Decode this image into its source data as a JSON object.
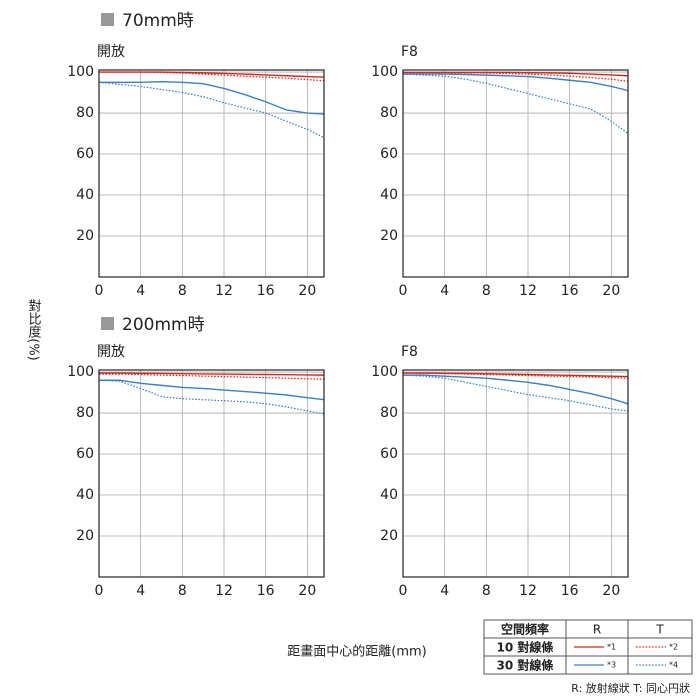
{
  "sections": [
    "70mm時",
    "200mm時"
  ],
  "y_label": "對比度(%)",
  "x_label": "距畫面中心的距離(mm)",
  "legend": {
    "header": [
      "空間頻率",
      "R",
      "T"
    ],
    "rows": [
      [
        "10 對線條",
        "*1",
        "*2"
      ],
      [
        "30 對線條",
        "*3",
        "*4"
      ]
    ],
    "note": "R: 放射線狀  T: 同心円狀"
  },
  "chart_data": [
    {
      "type": "line",
      "subtitle": "開放",
      "x": [
        0,
        2,
        4,
        6,
        8,
        10,
        12,
        14,
        16,
        18,
        20,
        21.6
      ],
      "xlim": [
        0,
        21.6
      ],
      "xticks": [
        0,
        4,
        8,
        12,
        16,
        20
      ],
      "ylim": [
        0,
        101
      ],
      "yticks": [
        20,
        40,
        60,
        80,
        100
      ],
      "grid": true,
      "series": [
        {
          "color": "#d7261e",
          "dash": "solid",
          "values": [
            100,
            100,
            100,
            100,
            99.8,
            99.6,
            99.3,
            99,
            98.6,
            98.2,
            97.8,
            97.5
          ]
        },
        {
          "color": "#d7261e",
          "dash": "dotted",
          "values": [
            100,
            100,
            100,
            99.8,
            99.5,
            99,
            98.5,
            98,
            97.5,
            97,
            96.3,
            95.8
          ]
        },
        {
          "color": "#3d7fc4",
          "dash": "solid",
          "values": [
            95,
            95,
            95,
            95.3,
            95,
            94.3,
            92,
            89,
            85.5,
            81.5,
            80,
            79.5
          ]
        },
        {
          "color": "#3d7fc4",
          "dash": "dotted",
          "values": [
            95,
            94,
            93,
            91.5,
            90,
            88,
            85,
            82.5,
            80,
            76,
            72,
            68
          ]
        }
      ]
    },
    {
      "type": "line",
      "subtitle": "F8",
      "x": [
        0,
        2,
        4,
        6,
        8,
        10,
        12,
        14,
        16,
        18,
        20,
        21.6
      ],
      "xlim": [
        0,
        21.6
      ],
      "xticks": [
        0,
        4,
        8,
        12,
        16,
        20
      ],
      "ylim": [
        0,
        101
      ],
      "yticks": [
        20,
        40,
        60,
        80,
        100
      ],
      "grid": true,
      "series": [
        {
          "color": "#d7261e",
          "dash": "solid",
          "values": [
            99.8,
            99.8,
            99.8,
            99.8,
            99.8,
            99.8,
            99.7,
            99.6,
            99.4,
            99,
            98.6,
            98.2
          ]
        },
        {
          "color": "#d7261e",
          "dash": "dotted",
          "values": [
            99.5,
            99.5,
            99.5,
            99.5,
            99.5,
            99.3,
            99,
            98.6,
            98,
            97.3,
            96.5,
            95.5
          ]
        },
        {
          "color": "#3d7fc4",
          "dash": "solid",
          "values": [
            99,
            99,
            99,
            98.8,
            98.5,
            98.2,
            97.8,
            97,
            96,
            95,
            93,
            91
          ]
        },
        {
          "color": "#3d7fc4",
          "dash": "dotted",
          "values": [
            99,
            98.5,
            98,
            96.5,
            94.5,
            92,
            89.5,
            87,
            84.5,
            82,
            76,
            70
          ]
        }
      ]
    },
    {
      "type": "line",
      "subtitle": "開放",
      "x": [
        0,
        2,
        4,
        6,
        8,
        10,
        12,
        14,
        16,
        18,
        20,
        21.6
      ],
      "xlim": [
        0,
        21.6
      ],
      "xticks": [
        0,
        4,
        8,
        12,
        16,
        20
      ],
      "ylim": [
        0,
        101
      ],
      "yticks": [
        20,
        40,
        60,
        80,
        100
      ],
      "grid": true,
      "series": [
        {
          "color": "#d7261e",
          "dash": "solid",
          "values": [
            99.5,
            99.5,
            99.4,
            99.3,
            99.2,
            99.1,
            99,
            98.9,
            98.8,
            98.7,
            98.6,
            98.5
          ]
        },
        {
          "color": "#d7261e",
          "dash": "dotted",
          "values": [
            99,
            99,
            98.8,
            98.5,
            98.3,
            98,
            97.8,
            97.5,
            97.3,
            97,
            96.7,
            96.5
          ]
        },
        {
          "color": "#3d7fc4",
          "dash": "solid",
          "values": [
            96,
            96,
            94.5,
            93.5,
            92.5,
            92,
            91.2,
            90.5,
            89.7,
            88.8,
            87.5,
            86.5
          ]
        },
        {
          "color": "#3d7fc4",
          "dash": "dotted",
          "values": [
            96,
            95.5,
            92,
            88,
            87,
            86.5,
            86,
            85.5,
            84.5,
            83,
            81,
            79.5
          ]
        }
      ]
    },
    {
      "type": "line",
      "subtitle": "F8",
      "x": [
        0,
        2,
        4,
        6,
        8,
        10,
        12,
        14,
        16,
        18,
        20,
        21.6
      ],
      "xlim": [
        0,
        21.6
      ],
      "xticks": [
        0,
        4,
        8,
        12,
        16,
        20
      ],
      "ylim": [
        0,
        101
      ],
      "yticks": [
        20,
        40,
        60,
        80,
        100
      ],
      "grid": true,
      "series": [
        {
          "color": "#d7261e",
          "dash": "solid",
          "values": [
            99.5,
            99.5,
            99.4,
            99.3,
            99.2,
            99,
            98.8,
            98.6,
            98.4,
            98.2,
            98,
            97.8
          ]
        },
        {
          "color": "#d7261e",
          "dash": "dotted",
          "values": [
            99.5,
            99.4,
            99.2,
            99,
            98.8,
            98.6,
            98.3,
            98,
            97.8,
            97.6,
            97.3,
            97
          ]
        },
        {
          "color": "#3d7fc4",
          "dash": "solid",
          "values": [
            98.5,
            98.5,
            98,
            97.5,
            97,
            96,
            95,
            93.5,
            91.5,
            89.5,
            87,
            84.5
          ]
        },
        {
          "color": "#3d7fc4",
          "dash": "dotted",
          "values": [
            98.5,
            98,
            97,
            95,
            93,
            91,
            89,
            87.5,
            86,
            84,
            82,
            81
          ]
        }
      ]
    }
  ]
}
